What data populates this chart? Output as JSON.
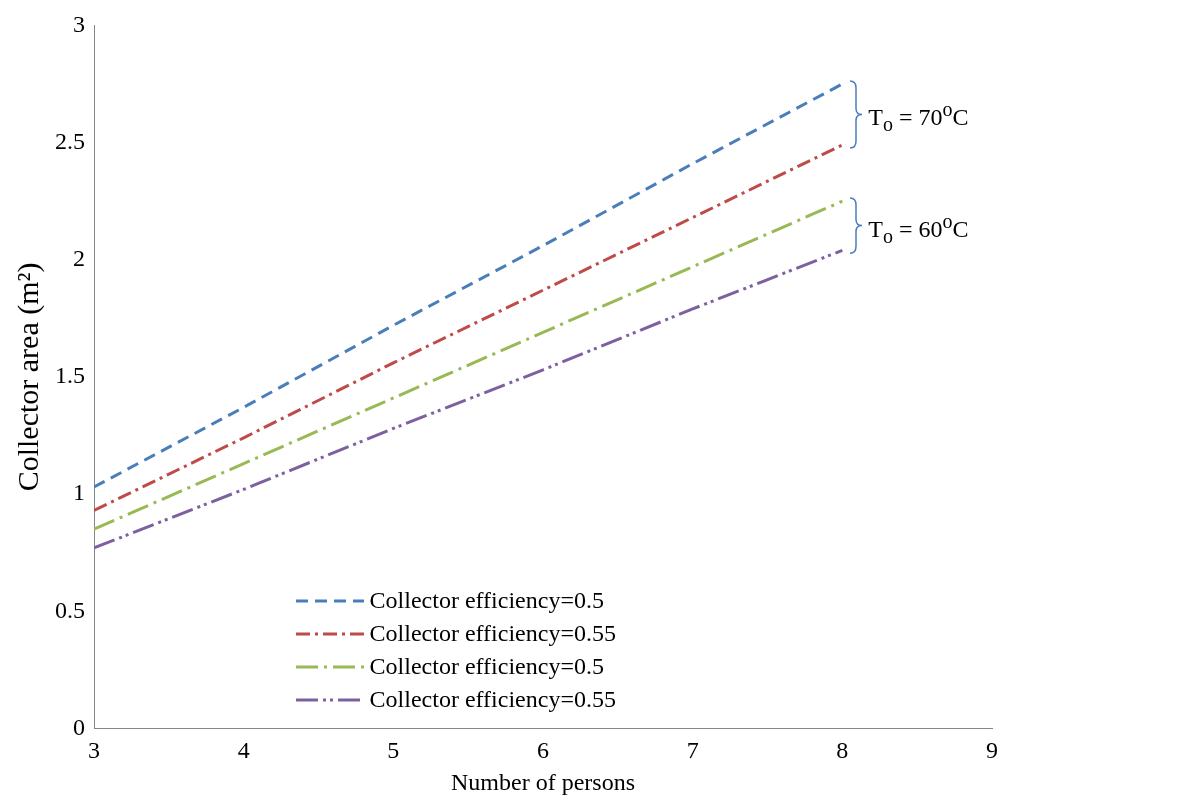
{
  "chart_data": {
    "type": "line",
    "xlabel": "Number of persons",
    "ylabel": "Collector area (m²)",
    "x": [
      3,
      4,
      5,
      6,
      7,
      8
    ],
    "xlim": [
      3,
      9
    ],
    "xticks": [
      3,
      4,
      5,
      6,
      7,
      8,
      9
    ],
    "ylim": [
      0,
      3
    ],
    "yticks": [
      0,
      0.5,
      1,
      1.5,
      2,
      2.5,
      3
    ],
    "grid": false,
    "legend": "bottom",
    "marker": "none",
    "series": [
      {
        "name": "Collector efficiency=0.5",
        "color": "#4a7ebb",
        "line_style": "dashed",
        "values": [
          1.03,
          1.37,
          1.72,
          2.06,
          2.41,
          2.75
        ]
      },
      {
        "name": "Collector efficiency=0.55",
        "color": "#be4b48",
        "line_style": "dashed",
        "values": [
          0.93,
          1.24,
          1.56,
          1.87,
          2.18,
          2.49
        ]
      },
      {
        "name": "Collector efficiency=0.5",
        "color": "#98b954",
        "line_style": "dashed",
        "values": [
          0.85,
          1.13,
          1.41,
          1.69,
          1.97,
          2.25
        ]
      },
      {
        "name": "Collector efficiency=0.55",
        "color": "#7d60a0",
        "line_style": "dashed",
        "values": [
          0.77,
          1.02,
          1.28,
          1.53,
          1.79,
          2.04
        ]
      }
    ],
    "annotations": [
      "T$_{o}$ = 70$^{o}$C",
      "T$_{o}$ = 60$^{o}$C"
    ]
  }
}
